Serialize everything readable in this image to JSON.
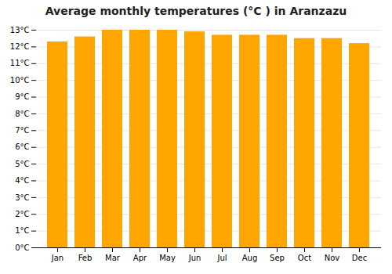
{
  "chart_data": {
    "type": "bar",
    "title": "Average monthly temperatures (°C ) in Aranzazu",
    "categories": [
      "Jan",
      "Feb",
      "Mar",
      "Apr",
      "May",
      "Jun",
      "Jul",
      "Aug",
      "Sep",
      "Oct",
      "Nov",
      "Dec"
    ],
    "values": [
      12.3,
      12.6,
      13.0,
      13.0,
      13.0,
      12.9,
      12.7,
      12.7,
      12.7,
      12.5,
      12.5,
      12.2
    ],
    "color": "#FFA500",
    "ylim": [
      0,
      13
    ],
    "yticks": [
      {
        "value": 0,
        "label": "0°C"
      },
      {
        "value": 1,
        "label": "1°C"
      },
      {
        "value": 2,
        "label": "2°C"
      },
      {
        "value": 3,
        "label": "3°C"
      },
      {
        "value": 4,
        "label": "4°C"
      },
      {
        "value": 5,
        "label": "5°C"
      },
      {
        "value": 6,
        "label": "6°C"
      },
      {
        "value": 7,
        "label": "7°C"
      },
      {
        "value": 8,
        "label": "8°C"
      },
      {
        "value": 9,
        "label": "9°C"
      },
      {
        "value": 10,
        "label": "10°C"
      },
      {
        "value": 11,
        "label": "11°C"
      },
      {
        "value": 12,
        "label": "12°C"
      },
      {
        "value": 13,
        "label": "13°C"
      }
    ],
    "grid": true
  }
}
